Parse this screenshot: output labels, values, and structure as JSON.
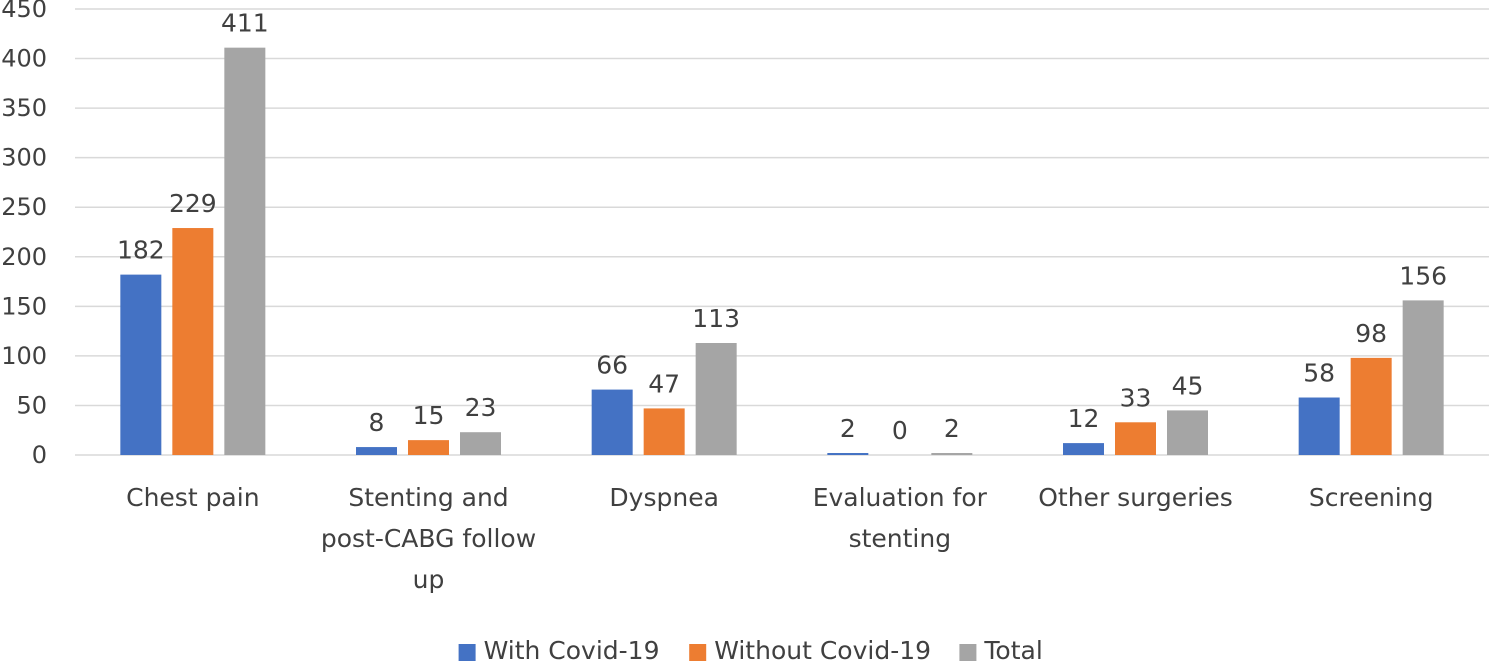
{
  "chart_data": {
    "type": "bar",
    "title": "",
    "xlabel": "",
    "ylabel": "",
    "ylim": [
      0,
      450
    ],
    "yticks": [
      0,
      50,
      100,
      150,
      200,
      250,
      300,
      350,
      400,
      450
    ],
    "grid": true,
    "legend_position": "bottom",
    "categories": [
      [
        "Chest pain"
      ],
      [
        "Stenting and",
        "post-CABG follow",
        "up"
      ],
      [
        "Dyspnea"
      ],
      [
        "Evaluation for",
        "stenting"
      ],
      [
        "Other surgeries"
      ],
      [
        "Screening"
      ]
    ],
    "series": [
      {
        "name": "With Covid-19",
        "color": "#4472c4",
        "values": [
          182,
          8,
          66,
          2,
          12,
          58
        ]
      },
      {
        "name": "Without Covid-19",
        "color": "#ed7d31",
        "values": [
          229,
          15,
          47,
          0,
          33,
          98
        ]
      },
      {
        "name": "Total",
        "color": "#a5a5a5",
        "values": [
          411,
          23,
          113,
          2,
          45,
          156
        ]
      }
    ]
  }
}
